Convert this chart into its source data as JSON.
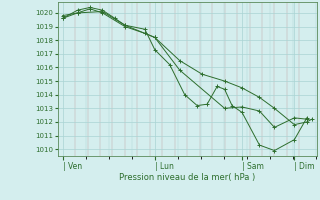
{
  "background_color": "#d4eeee",
  "grid_color": "#aad4d4",
  "line_color": "#2d6e2d",
  "marker_color": "#2d6e2d",
  "xlabel": "Pression niveau de la mer( hPa )",
  "ylim": [
    1009.5,
    1020.8
  ],
  "yticks": [
    1010,
    1011,
    1012,
    1013,
    1014,
    1015,
    1016,
    1017,
    1018,
    1019,
    1020
  ],
  "xtick_labels": [
    "| Ven",
    "| Lun",
    "| Sam",
    "| Dim"
  ],
  "xtick_positions": [
    0.0,
    0.37,
    0.72,
    0.93
  ],
  "series": [
    {
      "x": [
        0.0,
        0.06,
        0.11,
        0.16,
        0.25,
        0.33,
        0.37,
        0.47,
        0.56,
        0.65,
        0.72,
        0.79,
        0.85,
        0.93,
        0.98,
        1.0
      ],
      "y": [
        1019.8,
        1020.0,
        1020.3,
        1020.0,
        1019.0,
        1018.5,
        1018.2,
        1016.5,
        1015.5,
        1015.0,
        1014.5,
        1013.8,
        1013.0,
        1011.8,
        1012.0,
        1012.2
      ]
    },
    {
      "x": [
        0.0,
        0.06,
        0.11,
        0.16,
        0.21,
        0.25,
        0.33,
        0.37,
        0.43,
        0.49,
        0.54,
        0.58,
        0.62,
        0.65,
        0.68,
        0.72,
        0.79,
        0.85,
        0.93,
        0.98
      ],
      "y": [
        1019.6,
        1020.2,
        1020.4,
        1020.2,
        1019.6,
        1019.1,
        1018.8,
        1017.3,
        1016.2,
        1014.0,
        1013.2,
        1013.3,
        1014.6,
        1014.4,
        1013.2,
        1012.7,
        1010.3,
        1009.9,
        1010.7,
        1012.3
      ]
    },
    {
      "x": [
        0.0,
        0.06,
        0.16,
        0.25,
        0.37,
        0.47,
        0.65,
        0.72,
        0.79,
        0.85,
        0.93,
        0.98
      ],
      "y": [
        1019.6,
        1020.0,
        1020.1,
        1019.1,
        1018.2,
        1015.8,
        1013.0,
        1013.1,
        1012.8,
        1011.6,
        1012.3,
        1012.2
      ]
    }
  ]
}
